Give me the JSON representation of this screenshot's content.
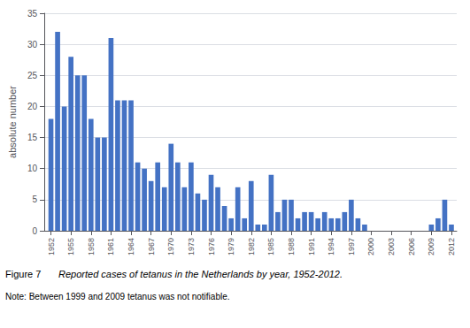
{
  "chart_data": {
    "type": "bar",
    "x": [
      1952,
      1953,
      1954,
      1955,
      1956,
      1957,
      1958,
      1959,
      1960,
      1961,
      1962,
      1963,
      1964,
      1965,
      1966,
      1967,
      1968,
      1969,
      1970,
      1971,
      1972,
      1973,
      1974,
      1975,
      1976,
      1977,
      1978,
      1979,
      1980,
      1981,
      1982,
      1983,
      1984,
      1985,
      1986,
      1987,
      1988,
      1989,
      1990,
      1991,
      1992,
      1993,
      1994,
      1995,
      1996,
      1997,
      1998,
      1999,
      2000,
      2001,
      2002,
      2003,
      2004,
      2005,
      2006,
      2007,
      2008,
      2009,
      2010,
      2011,
      2012
    ],
    "values": [
      18,
      32,
      20,
      28,
      25,
      25,
      18,
      15,
      15,
      31,
      21,
      21,
      21,
      11,
      10,
      8,
      11,
      7,
      14,
      11,
      7,
      11,
      6,
      5,
      9,
      7,
      4,
      2,
      7,
      2,
      8,
      1,
      1,
      9,
      3,
      5,
      5,
      2,
      3,
      3,
      2,
      3,
      2,
      2,
      3,
      5,
      2,
      1,
      0,
      0,
      0,
      0,
      0,
      0,
      0,
      0,
      0,
      1,
      2,
      5,
      1
    ],
    "color": "#4472C4",
    "y_label": "absolute number",
    "xlim": [
      1951.0,
      2012.8
    ],
    "xticks": [
      1952,
      1955,
      1958,
      1961,
      1964,
      1967,
      1970,
      1973,
      1976,
      1979,
      1982,
      1985,
      1988,
      1991,
      1994,
      1997,
      2000,
      2003,
      2006,
      2009,
      2012
    ],
    "ylim": [
      0,
      35
    ],
    "yticks": [
      0,
      5,
      10,
      15,
      20,
      25,
      30,
      35
    ],
    "grid": true,
    "annotations": [
      "Figure 7",
      "Reported cases of tetanus in the Netherlands by year, 1952-2012.",
      "Note: Between 1999 and 2009 tetanus was not notifiable."
    ]
  }
}
